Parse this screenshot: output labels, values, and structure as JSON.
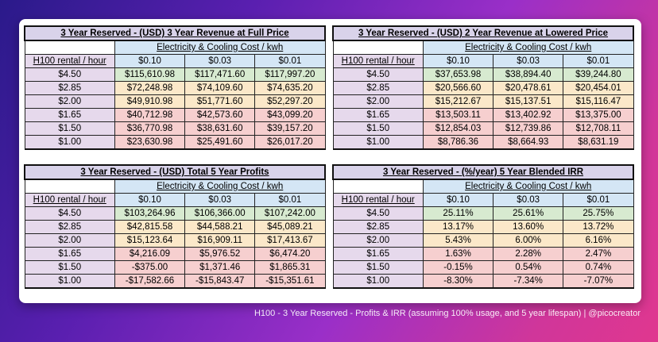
{
  "header_electricity": "Electricity & Cooling Cost / kwh",
  "header_h100": "H100 rental / hour",
  "costs": [
    "$0.10",
    "$0.03",
    "$0.01"
  ],
  "prices": [
    "$4.50",
    "$2.85",
    "$2.00",
    "$1.65",
    "$1.50",
    "$1.00"
  ],
  "tables": [
    {
      "title": "3 Year Reserved - (USD) 3 Year Revenue at Full Price",
      "rows": [
        [
          "$115,610.98",
          "$117,471.60",
          "$117,997.20"
        ],
        [
          "$72,248.98",
          "$74,109.60",
          "$74,635.20"
        ],
        [
          "$49,910.98",
          "$51,771.60",
          "$52,297.20"
        ],
        [
          "$40,712.98",
          "$42,573.60",
          "$43,099.20"
        ],
        [
          "$36,770.98",
          "$38,631.60",
          "$39,157.20"
        ],
        [
          "$23,630.98",
          "$25,491.60",
          "$26,017.20"
        ]
      ]
    },
    {
      "title": "3 Year Reserved - (USD) 2 Year Revenue at Lowered Price",
      "rows": [
        [
          "$37,653.98",
          "$38,894.40",
          "$39,244.80"
        ],
        [
          "$20,566.60",
          "$20,478.61",
          "$20,454.01"
        ],
        [
          "$15,212.67",
          "$15,137.51",
          "$15,116.47"
        ],
        [
          "$13,503.11",
          "$13,402.92",
          "$13,375.00"
        ],
        [
          "$12,854.03",
          "$12,739.86",
          "$12,708.11"
        ],
        [
          "$8,786.36",
          "$8,664.93",
          "$8,631.19"
        ]
      ]
    },
    {
      "title": "3 Year Reserved - (USD) Total 5 Year Profits",
      "rows": [
        [
          "$103,264.96",
          "$106,366.00",
          "$107,242.00"
        ],
        [
          "$42,815.58",
          "$44,588.21",
          "$45,089.21"
        ],
        [
          "$15,123.64",
          "$16,909.11",
          "$17,413.67"
        ],
        [
          "$4,216.09",
          "$5,976.52",
          "$6,474.20"
        ],
        [
          "-$375.00",
          "$1,371.46",
          "$1,865.31"
        ],
        [
          "-$17,582.66",
          "-$15,843.47",
          "-$15,351.61"
        ]
      ]
    },
    {
      "title": "3 Year Reserved - (%/year) 5 Year Blended IRR",
      "rows": [
        [
          "25.11%",
          "25.61%",
          "25.75%"
        ],
        [
          "13.17%",
          "13.60%",
          "13.72%"
        ],
        [
          "5.43%",
          "6.00%",
          "6.16%"
        ],
        [
          "1.63%",
          "2.28%",
          "2.47%"
        ],
        [
          "-0.15%",
          "0.54%",
          "0.74%"
        ],
        [
          "-8.30%",
          "-7.34%",
          "-7.07%"
        ]
      ]
    }
  ],
  "caption": "H100 - 3 Year Reserved - Profits & IRR (assuming 100% usage, and 5 year lifespan) | @picocreator",
  "colors": {
    "title_bg": "#d9d3ea",
    "header_blue": "#d4e6f5",
    "price_purple": "#e6d9ec",
    "green": "#d7ead0",
    "orange": "#fbe8c9",
    "red": "#f6cfcf"
  }
}
